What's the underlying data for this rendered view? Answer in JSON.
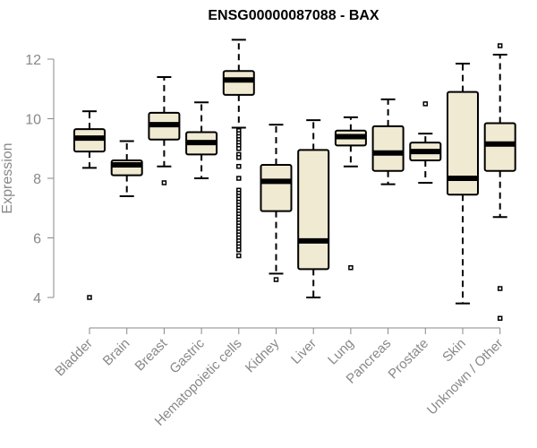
{
  "chart_data": {
    "type": "boxplot",
    "title": "ENSG00000087088 - BAX",
    "xlabel": "",
    "ylabel": "Expression",
    "ylim": [
      3.0,
      13.0
    ],
    "yticks": [
      4,
      6,
      8,
      10,
      12
    ],
    "grid": false,
    "box_color": "#f0ead2",
    "categories": [
      "Bladder",
      "Brain",
      "Breast",
      "Gastric",
      "Hematopoietic cells",
      "Kidney",
      "Liver",
      "Lung",
      "Pancreas",
      "Prostate",
      "Skin",
      "Unknown / Other"
    ],
    "boxes": [
      {
        "name": "Bladder",
        "whisker_low": 8.35,
        "q1": 8.9,
        "median": 9.35,
        "q3": 9.65,
        "whisker_high": 10.25,
        "outliers": [
          4.0
        ]
      },
      {
        "name": "Brain",
        "whisker_low": 7.4,
        "q1": 8.1,
        "median": 8.45,
        "q3": 8.6,
        "whisker_high": 9.25,
        "outliers": []
      },
      {
        "name": "Breast",
        "whisker_low": 8.4,
        "q1": 9.3,
        "median": 9.8,
        "q3": 10.2,
        "whisker_high": 11.4,
        "outliers": [
          7.85
        ]
      },
      {
        "name": "Gastric",
        "whisker_low": 8.0,
        "q1": 8.8,
        "median": 9.2,
        "q3": 9.55,
        "whisker_high": 10.55,
        "outliers": []
      },
      {
        "name": "Hematopoietic cells",
        "whisker_low": 9.7,
        "q1": 10.8,
        "median": 11.3,
        "q3": 11.6,
        "whisker_high": 12.65,
        "outliers": [
          9.6,
          9.5,
          9.4,
          9.3,
          9.2,
          9.1,
          9.0,
          8.8,
          8.7,
          8.4,
          8.0,
          7.6,
          7.5,
          7.4,
          7.3,
          7.2,
          7.1,
          7.0,
          6.9,
          6.8,
          6.7,
          6.6,
          6.5,
          6.4,
          6.3,
          6.2,
          6.1,
          6.0,
          5.9,
          5.8,
          5.7,
          5.6,
          5.4
        ]
      },
      {
        "name": "Kidney",
        "whisker_low": 4.8,
        "q1": 6.9,
        "median": 7.9,
        "q3": 8.45,
        "whisker_high": 9.8,
        "outliers": [
          4.6
        ]
      },
      {
        "name": "Liver",
        "whisker_low": 4.0,
        "q1": 4.95,
        "median": 5.9,
        "q3": 8.95,
        "whisker_high": 9.95,
        "outliers": []
      },
      {
        "name": "Lung",
        "whisker_low": 8.4,
        "q1": 9.1,
        "median": 9.4,
        "q3": 9.6,
        "whisker_high": 10.05,
        "outliers": [
          5.0
        ]
      },
      {
        "name": "Pancreas",
        "whisker_low": 7.8,
        "q1": 8.25,
        "median": 8.85,
        "q3": 9.75,
        "whisker_high": 10.65,
        "outliers": []
      },
      {
        "name": "Prostate",
        "whisker_low": 7.85,
        "q1": 8.6,
        "median": 8.9,
        "q3": 9.2,
        "whisker_high": 9.5,
        "outliers": [
          10.5
        ]
      },
      {
        "name": "Skin",
        "whisker_low": 3.8,
        "q1": 7.45,
        "median": 8.0,
        "q3": 10.9,
        "whisker_high": 11.85,
        "outliers": []
      },
      {
        "name": "Unknown / Other",
        "whisker_low": 6.7,
        "q1": 8.25,
        "median": 9.15,
        "q3": 9.85,
        "whisker_high": 12.15,
        "outliers": [
          12.45,
          4.3,
          3.3
        ]
      }
    ]
  }
}
